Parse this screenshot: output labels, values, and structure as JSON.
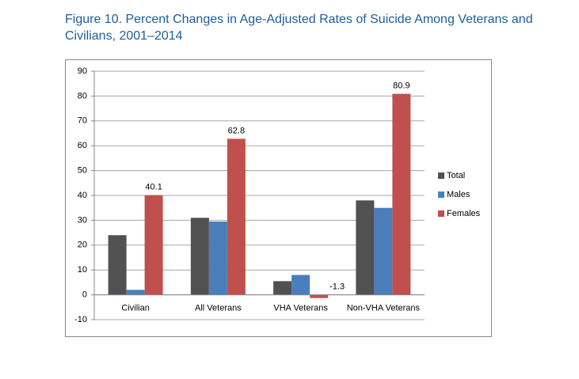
{
  "chart_data": {
    "type": "bar",
    "title": "Figure 10.  Percent Changes in Age-Adjusted Rates of Suicide Among Veterans and Civilians, 2001–2014",
    "categories": [
      "Civilian",
      "All Veterans",
      "VHA Veterans",
      "Non-VHA Veterans"
    ],
    "series": [
      {
        "name": "Total",
        "color": "#515151",
        "values": [
          24,
          31,
          5.5,
          38
        ],
        "show_labels": false
      },
      {
        "name": "Males",
        "color": "#4a7ebb",
        "values": [
          2,
          29.5,
          8,
          35
        ],
        "show_labels": false
      },
      {
        "name": "Females",
        "color": "#c0504d",
        "values": [
          40.1,
          62.8,
          -1.3,
          80.9
        ],
        "show_labels": true
      }
    ],
    "ylim": [
      -10,
      90
    ],
    "yticks": [
      -10,
      0,
      10,
      20,
      30,
      40,
      50,
      60,
      70,
      80,
      90
    ],
    "grid": true,
    "legend": "right"
  }
}
